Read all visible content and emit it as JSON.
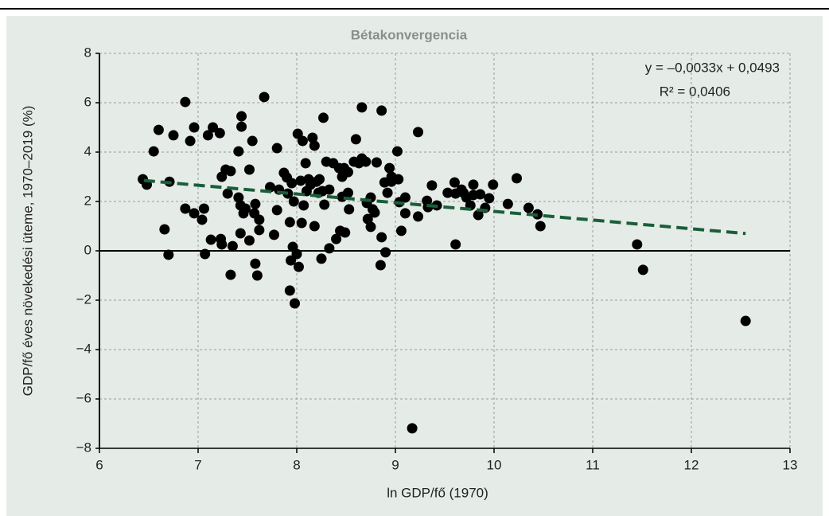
{
  "chart_data": {
    "type": "scatter",
    "title": "Bétakonvergencia",
    "xlabel": "ln GDP/fő (1970)",
    "ylabel": "GDP/fő éves növekedési üteme, 1970–2019 (%)",
    "annotations": [
      "y = –0,0033x + 0,0493",
      "R² = 0,0406"
    ],
    "color": "#000000",
    "grid": true,
    "xlim": [
      6,
      13
    ],
    "ylim": [
      -8,
      8
    ],
    "xticks": [
      6,
      7,
      8,
      9,
      10,
      11,
      12,
      13
    ],
    "yticks": [
      {
        "value": -8,
        "label": "−8"
      },
      {
        "value": -6,
        "label": "−6"
      },
      {
        "value": -4,
        "label": "−4"
      },
      {
        "value": -2,
        "label": "−2"
      },
      0,
      2,
      4,
      6,
      8
    ],
    "trendline": {
      "x": [
        6.45,
        12.55
      ],
      "y": [
        2.85,
        0.7
      ],
      "color": "#1a5e3a"
    },
    "x": [
      6.44,
      6.48,
      6.55,
      6.6,
      6.66,
      6.7,
      6.71,
      6.75,
      6.87,
      6.87,
      6.92,
      6.96,
      6.96,
      7.04,
      7.06,
      7.07,
      7.1,
      7.13,
      7.15,
      7.22,
      7.23,
      7.24,
      7.24,
      7.28,
      7.3,
      7.33,
      7.33,
      7.35,
      7.41,
      7.41,
      7.43,
      7.43,
      7.44,
      7.44,
      7.46,
      7.48,
      7.52,
      7.52,
      7.55,
      7.57,
      7.58,
      7.58,
      7.6,
      7.62,
      7.62,
      7.67,
      7.73,
      7.77,
      7.8,
      7.8,
      7.82,
      7.87,
      7.9,
      7.91,
      7.93,
      7.93,
      7.94,
      7.95,
      7.96,
      7.97,
      7.98,
      8.0,
      8.01,
      8.02,
      8.04,
      8.05,
      8.06,
      8.07,
      8.09,
      8.1,
      8.12,
      8.14,
      8.16,
      8.18,
      8.18,
      8.2,
      8.22,
      8.23,
      8.25,
      8.26,
      8.27,
      8.28,
      8.3,
      8.33,
      8.33,
      8.37,
      8.4,
      8.43,
      8.44,
      8.46,
      8.46,
      8.48,
      8.49,
      8.52,
      8.52,
      8.53,
      8.58,
      8.6,
      8.63,
      8.66,
      8.66,
      8.7,
      8.71,
      8.72,
      8.75,
      8.75,
      8.77,
      8.79,
      8.81,
      8.85,
      8.86,
      8.86,
      8.89,
      8.9,
      8.92,
      8.94,
      8.96,
      8.96,
      9.02,
      9.03,
      9.04,
      9.06,
      9.1,
      9.1,
      9.17,
      9.23,
      9.23,
      9.32,
      9.33,
      9.37,
      9.42,
      9.53,
      9.6,
      9.61,
      9.61,
      9.67,
      9.69,
      9.72,
      9.76,
      9.79,
      9.79,
      9.84,
      9.86,
      9.91,
      9.95,
      9.99,
      10.14,
      10.23,
      10.35,
      10.44,
      10.47,
      11.45,
      11.51,
      12.55
    ],
    "y": [
      2.9,
      2.68,
      4.03,
      4.9,
      0.87,
      -0.16,
      2.8,
      4.68,
      6.03,
      1.71,
      4.45,
      5.0,
      1.52,
      1.26,
      1.71,
      -0.13,
      4.68,
      0.45,
      5.0,
      4.77,
      0.48,
      3.0,
      0.26,
      3.29,
      2.32,
      3.23,
      -0.97,
      0.19,
      4.03,
      2.16,
      1.84,
      0.71,
      5.45,
      5.03,
      1.52,
      1.71,
      3.29,
      0.42,
      4.45,
      1.52,
      1.9,
      -0.52,
      -1.0,
      1.26,
      0.84,
      6.23,
      2.58,
      0.65,
      4.16,
      1.65,
      2.48,
      3.16,
      2.97,
      2.32,
      -1.61,
      1.16,
      -0.39,
      2.74,
      0.16,
      2.0,
      -2.13,
      -0.13,
      4.74,
      -0.65,
      2.84,
      1.13,
      4.45,
      1.84,
      3.55,
      2.42,
      2.9,
      2.68,
      4.58,
      4.26,
      1.0,
      2.8,
      2.35,
      2.9,
      -0.32,
      2.42,
      5.39,
      1.87,
      3.61,
      2.48,
      0.1,
      3.55,
      0.48,
      3.35,
      0.81,
      2.19,
      3.0,
      3.35,
      0.74,
      2.35,
      3.19,
      1.68,
      3.61,
      4.52,
      3.55,
      3.74,
      5.81,
      3.61,
      1.94,
      1.29,
      2.16,
      0.97,
      1.68,
      1.55,
      3.58,
      -0.58,
      5.68,
      0.55,
      2.77,
      -0.06,
      2.35,
      3.35,
      3.0,
      2.8,
      4.03,
      2.9,
      1.97,
      0.81,
      1.52,
      2.16,
      -7.19,
      4.81,
      1.39,
      2.03,
      1.77,
      2.65,
      1.84,
      2.35,
      2.77,
      2.32,
      0.26,
      2.48,
      2.35,
      2.16,
      1.84,
      2.68,
      2.26,
      1.45,
      2.29,
      1.74,
      2.13,
      2.68,
      1.9,
      2.94,
      1.74,
      1.48,
      1.0,
      0.26,
      -0.77,
      -2.84
    ]
  }
}
